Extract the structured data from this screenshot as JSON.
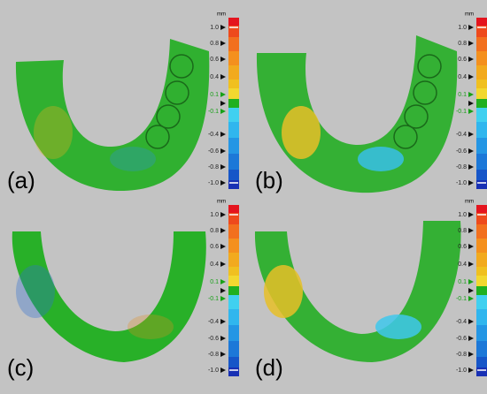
{
  "panels": [
    {
      "label": "(a)"
    },
    {
      "label": "(b)"
    },
    {
      "label": "(c)"
    },
    {
      "label": "(d)"
    }
  ],
  "colorbar": {
    "unit": "mm",
    "labels": [
      "1.0",
      "0.8",
      "0.6",
      "0.4",
      "0.1",
      "-0.1",
      "-0.4",
      "-0.6",
      "-0.8",
      "-1.0"
    ]
  }
}
